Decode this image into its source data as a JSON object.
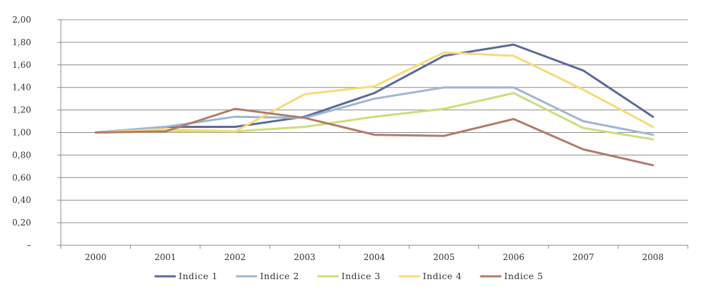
{
  "chart_data": {
    "type": "line",
    "title": "",
    "xlabel": "",
    "ylabel": "",
    "categories": [
      "2000",
      "2001",
      "2002",
      "2003",
      "2004",
      "2005",
      "2006",
      "2007",
      "2008"
    ],
    "ylim": [
      0,
      2.0
    ],
    "y_ticks": [
      0,
      0.2,
      0.4,
      0.6,
      0.8,
      1.0,
      1.2,
      1.4,
      1.6,
      1.8,
      2.0
    ],
    "y_tick_labels": [
      "–",
      "0,20",
      "0,40",
      "0,60",
      "0,80",
      "1,00",
      "1,20",
      "1,40",
      "1,60",
      "1,80",
      "2,00"
    ],
    "grid": true,
    "legend_position": "bottom",
    "series": [
      {
        "name": "Indice 1",
        "color": "#5b6a9a",
        "values": [
          1.0,
          1.05,
          1.05,
          1.14,
          1.35,
          1.68,
          1.78,
          1.55,
          1.14
        ]
      },
      {
        "name": "Indice 2",
        "color": "#9fb6d2",
        "values": [
          1.0,
          1.05,
          1.14,
          1.13,
          1.3,
          1.4,
          1.4,
          1.1,
          0.98
        ]
      },
      {
        "name": "Indice 3",
        "color": "#cedd78",
        "values": [
          1.0,
          1.01,
          1.01,
          1.05,
          1.14,
          1.21,
          1.35,
          1.04,
          0.94
        ]
      },
      {
        "name": "Indice 4",
        "color": "#f9d97a",
        "values": [
          1.0,
          1.03,
          1.01,
          1.34,
          1.41,
          1.71,
          1.68,
          1.38,
          1.05
        ]
      },
      {
        "name": "Indice 5",
        "color": "#b27b6b",
        "values": [
          1.0,
          1.01,
          1.21,
          1.13,
          0.98,
          0.97,
          1.12,
          0.85,
          0.71
        ]
      }
    ]
  }
}
